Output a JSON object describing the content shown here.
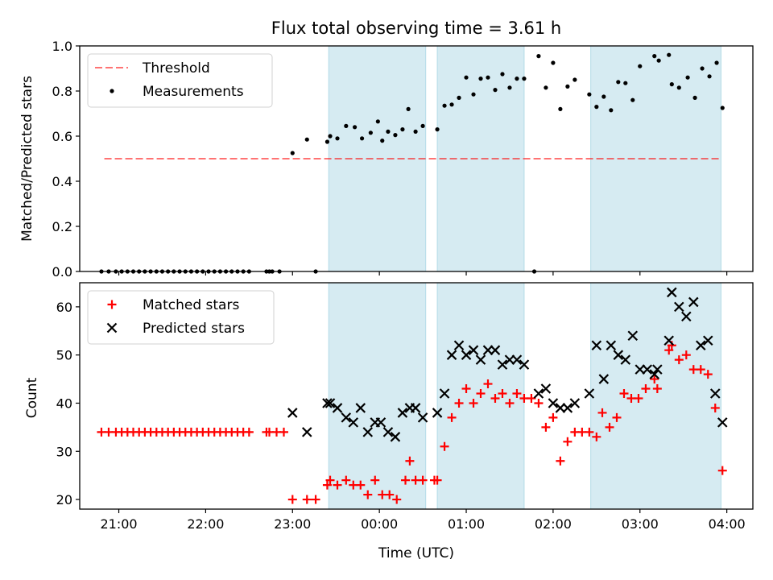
{
  "figure": {
    "title": "Flux total observing time = 3.61 h"
  },
  "colors": {
    "band": "#add8e6",
    "threshold": "#ff0000",
    "measurements": "#000000",
    "matched": "#ff0000",
    "predicted": "#000000"
  },
  "chart_data": [
    {
      "type": "scatter",
      "panel": "top",
      "ylabel": "Matched/Predicted stars",
      "xlabel": "",
      "xlim": [
        20.55,
        4.3
      ],
      "ylim": [
        0.0,
        1.0
      ],
      "yticks": [
        "0.0",
        "0.2",
        "0.4",
        "0.6",
        "0.8",
        "1.0"
      ],
      "x_tick_labels": [],
      "legend_position": "top-left",
      "grid": false,
      "shaded_intervals": [
        [
          "23:25",
          "00:32"
        ],
        [
          "00:40",
          "01:40"
        ],
        [
          "02:26",
          "03:56"
        ]
      ],
      "threshold": {
        "name": "Threshold",
        "y": 0.5,
        "x_start": "20:50",
        "x_end": "03:56",
        "style": "dashed"
      },
      "series": [
        {
          "name": "Measurements",
          "marker": "dot",
          "points": [
            [
              "20:48",
              0.0
            ],
            [
              "20:53",
              0.0
            ],
            [
              "20:58",
              0.0
            ],
            [
              "21:02",
              0.0
            ],
            [
              "21:06",
              0.0
            ],
            [
              "21:10",
              0.0
            ],
            [
              "21:14",
              0.0
            ],
            [
              "21:18",
              0.0
            ],
            [
              "21:22",
              0.0
            ],
            [
              "21:26",
              0.0
            ],
            [
              "21:30",
              0.0
            ],
            [
              "21:34",
              0.0
            ],
            [
              "21:38",
              0.0
            ],
            [
              "21:42",
              0.0
            ],
            [
              "21:46",
              0.0
            ],
            [
              "21:50",
              0.0
            ],
            [
              "21:54",
              0.0
            ],
            [
              "21:58",
              0.0
            ],
            [
              "22:02",
              0.0
            ],
            [
              "22:06",
              0.0
            ],
            [
              "22:10",
              0.0
            ],
            [
              "22:14",
              0.0
            ],
            [
              "22:18",
              0.0
            ],
            [
              "22:22",
              0.0
            ],
            [
              "22:26",
              0.0
            ],
            [
              "22:30",
              0.0
            ],
            [
              "22:42",
              0.0
            ],
            [
              "22:44",
              0.0
            ],
            [
              "22:46",
              0.0
            ],
            [
              "22:51",
              0.0
            ],
            [
              "23:16",
              0.0
            ],
            [
              "23:00",
              0.525
            ],
            [
              "23:10",
              0.585
            ],
            [
              "23:24",
              0.575
            ],
            [
              "23:26",
              0.6
            ],
            [
              "23:31",
              0.59
            ],
            [
              "23:37",
              0.645
            ],
            [
              "23:43",
              0.64
            ],
            [
              "23:48",
              0.59
            ],
            [
              "23:54",
              0.615
            ],
            [
              "23:59",
              0.665
            ],
            [
              "00:02",
              0.58
            ],
            [
              "00:06",
              0.62
            ],
            [
              "00:11",
              0.605
            ],
            [
              "00:16",
              0.63
            ],
            [
              "00:20",
              0.72
            ],
            [
              "00:25",
              0.62
            ],
            [
              "00:30",
              0.645
            ],
            [
              "00:40",
              0.63
            ],
            [
              "00:45",
              0.735
            ],
            [
              "00:50",
              0.74
            ],
            [
              "00:55",
              0.77
            ],
            [
              "01:00",
              0.86
            ],
            [
              "01:05",
              0.785
            ],
            [
              "01:10",
              0.855
            ],
            [
              "01:15",
              0.86
            ],
            [
              "01:20",
              0.805
            ],
            [
              "01:25",
              0.875
            ],
            [
              "01:30",
              0.815
            ],
            [
              "01:35",
              0.855
            ],
            [
              "01:40",
              0.855
            ],
            [
              "01:47",
              0.0
            ],
            [
              "01:50",
              0.955
            ],
            [
              "01:55",
              0.815
            ],
            [
              "02:00",
              0.925
            ],
            [
              "02:05",
              0.72
            ],
            [
              "02:10",
              0.82
            ],
            [
              "02:15",
              0.85
            ],
            [
              "02:25",
              0.785
            ],
            [
              "02:30",
              0.73
            ],
            [
              "02:35",
              0.775
            ],
            [
              "02:40",
              0.715
            ],
            [
              "02:45",
              0.84
            ],
            [
              "02:50",
              0.835
            ],
            [
              "02:55",
              0.76
            ],
            [
              "03:00",
              0.91
            ],
            [
              "03:10",
              0.955
            ],
            [
              "03:13",
              0.935
            ],
            [
              "03:20",
              0.96
            ],
            [
              "03:22",
              0.83
            ],
            [
              "03:27",
              0.815
            ],
            [
              "03:33",
              0.86
            ],
            [
              "03:38",
              0.77
            ],
            [
              "03:43",
              0.9
            ],
            [
              "03:48",
              0.865
            ],
            [
              "03:53",
              0.925
            ],
            [
              "03:57",
              0.725
            ]
          ]
        }
      ]
    },
    {
      "type": "scatter",
      "panel": "bottom",
      "ylabel": "Count",
      "xlabel": "Time (UTC)",
      "xlim": [
        20.55,
        4.3
      ],
      "ylim": [
        18,
        65
      ],
      "yticks": [
        "20",
        "30",
        "40",
        "50",
        "60"
      ],
      "x_tick_labels": [
        "21:00",
        "22:00",
        "23:00",
        "00:00",
        "01:00",
        "02:00",
        "03:00",
        "04:00"
      ],
      "legend_position": "top-left",
      "grid": false,
      "shaded_intervals": [
        [
          "23:25",
          "00:32"
        ],
        [
          "00:40",
          "01:40"
        ],
        [
          "02:26",
          "03:56"
        ]
      ],
      "series": [
        {
          "name": "Matched stars",
          "marker": "plus",
          "points": [
            [
              "20:48",
              34
            ],
            [
              "20:53",
              34
            ],
            [
              "20:58",
              34
            ],
            [
              "21:02",
              34
            ],
            [
              "21:06",
              34
            ],
            [
              "21:10",
              34
            ],
            [
              "21:14",
              34
            ],
            [
              "21:18",
              34
            ],
            [
              "21:22",
              34
            ],
            [
              "21:26",
              34
            ],
            [
              "21:30",
              34
            ],
            [
              "21:34",
              34
            ],
            [
              "21:38",
              34
            ],
            [
              "21:42",
              34
            ],
            [
              "21:46",
              34
            ],
            [
              "21:50",
              34
            ],
            [
              "21:54",
              34
            ],
            [
              "21:58",
              34
            ],
            [
              "22:02",
              34
            ],
            [
              "22:06",
              34
            ],
            [
              "22:10",
              34
            ],
            [
              "22:14",
              34
            ],
            [
              "22:18",
              34
            ],
            [
              "22:22",
              34
            ],
            [
              "22:26",
              34
            ],
            [
              "22:30",
              34
            ],
            [
              "22:42",
              34
            ],
            [
              "22:44",
              34
            ],
            [
              "22:49",
              34
            ],
            [
              "22:54",
              34
            ],
            [
              "23:00",
              20
            ],
            [
              "23:10",
              20
            ],
            [
              "23:16",
              20
            ],
            [
              "23:24",
              23
            ],
            [
              "23:26",
              24
            ],
            [
              "23:31",
              23
            ],
            [
              "23:37",
              24
            ],
            [
              "23:42",
              23
            ],
            [
              "23:47",
              23
            ],
            [
              "23:52",
              21
            ],
            [
              "23:57",
              24
            ],
            [
              "00:02",
              21
            ],
            [
              "00:07",
              21
            ],
            [
              "00:12",
              20
            ],
            [
              "00:18",
              24
            ],
            [
              "00:21",
              28
            ],
            [
              "00:25",
              24
            ],
            [
              "00:30",
              24
            ],
            [
              "00:38",
              24
            ],
            [
              "00:40",
              24
            ],
            [
              "00:45",
              31
            ],
            [
              "00:50",
              37
            ],
            [
              "00:55",
              40
            ],
            [
              "01:00",
              43
            ],
            [
              "01:05",
              40
            ],
            [
              "01:10",
              42
            ],
            [
              "01:15",
              44
            ],
            [
              "01:20",
              41
            ],
            [
              "01:25",
              42
            ],
            [
              "01:30",
              40
            ],
            [
              "01:35",
              42
            ],
            [
              "01:40",
              41
            ],
            [
              "01:45",
              41
            ],
            [
              "01:50",
              40
            ],
            [
              "01:55",
              35
            ],
            [
              "02:00",
              37
            ],
            [
              "02:05",
              28
            ],
            [
              "02:10",
              32
            ],
            [
              "02:15",
              34
            ],
            [
              "02:20",
              34
            ],
            [
              "02:25",
              34
            ],
            [
              "02:30",
              33
            ],
            [
              "02:34",
              38
            ],
            [
              "02:39",
              35
            ],
            [
              "02:44",
              37
            ],
            [
              "02:49",
              42
            ],
            [
              "02:54",
              41
            ],
            [
              "02:59",
              41
            ],
            [
              "03:04",
              43
            ],
            [
              "03:10",
              45
            ],
            [
              "03:12",
              43
            ],
            [
              "03:20",
              51
            ],
            [
              "03:22",
              52
            ],
            [
              "03:27",
              49
            ],
            [
              "03:32",
              50
            ],
            [
              "03:37",
              47
            ],
            [
              "03:42",
              47
            ],
            [
              "03:47",
              46
            ],
            [
              "03:52",
              39
            ],
            [
              "03:57",
              26
            ]
          ]
        },
        {
          "name": "Predicted stars",
          "marker": "x",
          "points": [
            [
              "23:00",
              38
            ],
            [
              "23:10",
              34
            ],
            [
              "23:24",
              40
            ],
            [
              "23:26",
              40
            ],
            [
              "23:31",
              39
            ],
            [
              "23:37",
              37
            ],
            [
              "23:42",
              36
            ],
            [
              "23:47",
              39
            ],
            [
              "23:52",
              34
            ],
            [
              "23:57",
              36
            ],
            [
              "00:01",
              36
            ],
            [
              "00:06",
              34
            ],
            [
              "00:11",
              33
            ],
            [
              "00:16",
              38
            ],
            [
              "00:21",
              39
            ],
            [
              "00:25",
              39
            ],
            [
              "00:30",
              37
            ],
            [
              "00:40",
              38
            ],
            [
              "00:45",
              42
            ],
            [
              "00:50",
              50
            ],
            [
              "00:55",
              52
            ],
            [
              "01:00",
              50
            ],
            [
              "01:05",
              51
            ],
            [
              "01:10",
              49
            ],
            [
              "01:15",
              51
            ],
            [
              "01:20",
              51
            ],
            [
              "01:25",
              48
            ],
            [
              "01:30",
              49
            ],
            [
              "01:35",
              49
            ],
            [
              "01:40",
              48
            ],
            [
              "01:50",
              42
            ],
            [
              "01:55",
              43
            ],
            [
              "02:00",
              40
            ],
            [
              "02:05",
              39
            ],
            [
              "02:10",
              39
            ],
            [
              "02:15",
              40
            ],
            [
              "02:25",
              42
            ],
            [
              "02:30",
              52
            ],
            [
              "02:35",
              45
            ],
            [
              "02:40",
              52
            ],
            [
              "02:45",
              50
            ],
            [
              "02:50",
              49
            ],
            [
              "02:55",
              54
            ],
            [
              "03:00",
              47
            ],
            [
              "03:05",
              47
            ],
            [
              "03:10",
              46
            ],
            [
              "03:12",
              47
            ],
            [
              "03:20",
              53
            ],
            [
              "03:22",
              63
            ],
            [
              "03:27",
              60
            ],
            [
              "03:32",
              58
            ],
            [
              "03:37",
              61
            ],
            [
              "03:42",
              52
            ],
            [
              "03:47",
              53
            ],
            [
              "03:52",
              42
            ],
            [
              "03:57",
              36
            ]
          ]
        }
      ]
    }
  ]
}
